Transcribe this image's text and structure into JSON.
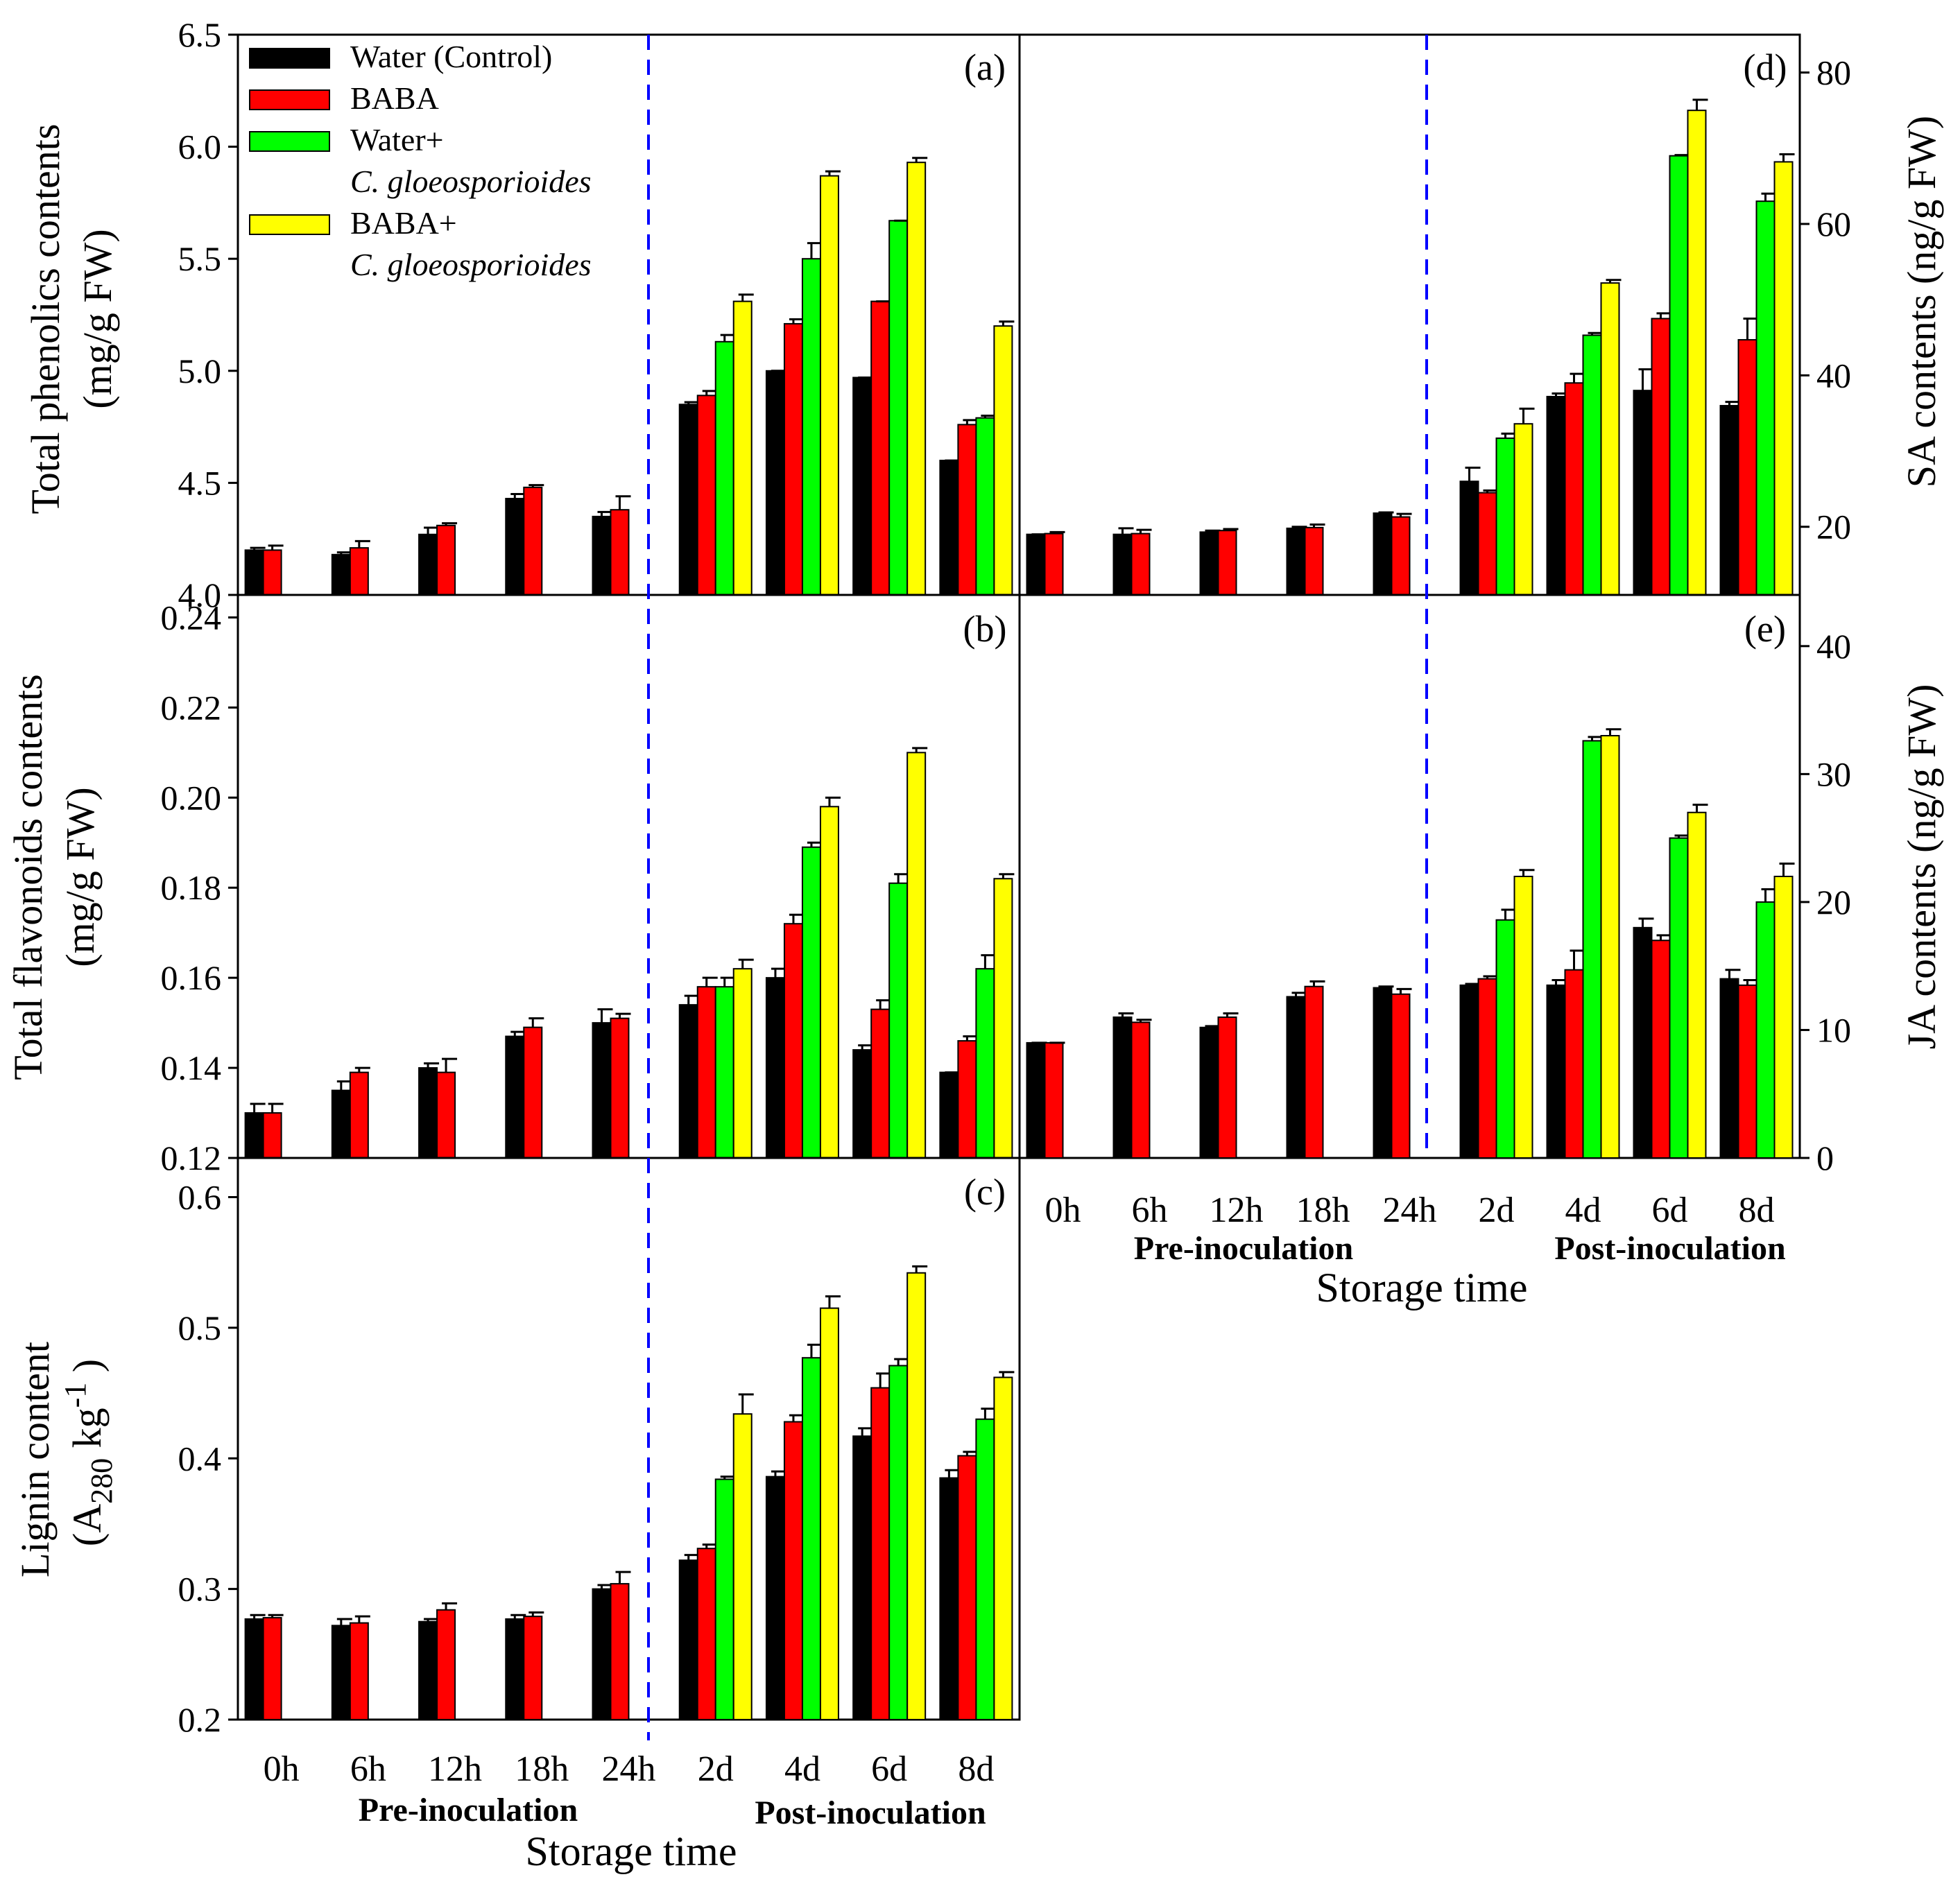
{
  "colors": {
    "water_control": "#000000",
    "baba": "#ff0000",
    "water_cg": "#00ff00",
    "baba_cg": "#ffff00",
    "divider": "#0000ff"
  },
  "legend": [
    {
      "line1": "Water (Control)",
      "line2": ""
    },
    {
      "line1": "BABA",
      "line2": ""
    },
    {
      "line1": "Water+",
      "line2": "C. gloeosporioides"
    },
    {
      "line1": "BABA+",
      "line2": "C. gloeosporioides"
    }
  ],
  "x_axis": {
    "categories": [
      "0h",
      "6h",
      "12h",
      "18h",
      "24h",
      "2d",
      "4d",
      "6d",
      "8d"
    ],
    "pre_label": "Pre-inoculation",
    "post_label": "Post-inoculation",
    "title": "Storage time"
  },
  "chart_data": [
    {
      "id": "a",
      "panel_label": "(a)",
      "type": "bar",
      "ylabel_line1": "Total phenolics contents",
      "ylabel_line2": "(mg/g FW)",
      "ylim": [
        4.0,
        6.5
      ],
      "yticks": [
        "4.0",
        "4.5",
        "5.0",
        "5.5",
        "6.0",
        "6.5"
      ],
      "ytick_values": [
        4.0,
        4.5,
        5.0,
        5.5,
        6.0,
        6.5
      ],
      "categories": [
        "0h",
        "6h",
        "12h",
        "18h",
        "24h",
        "2d",
        "4d",
        "6d",
        "8d"
      ],
      "series": [
        {
          "name": "Water (Control)",
          "values": [
            4.2,
            4.18,
            4.27,
            4.43,
            4.35,
            4.85,
            5.0,
            4.97,
            4.6
          ],
          "errors": [
            0.01,
            0.01,
            0.03,
            0.02,
            0.02,
            0.01,
            0.0,
            0.0,
            0.0
          ]
        },
        {
          "name": "BABA",
          "values": [
            4.2,
            4.21,
            4.31,
            4.48,
            4.38,
            4.89,
            5.21,
            5.31,
            4.76
          ],
          "errors": [
            0.02,
            0.03,
            0.01,
            0.01,
            0.06,
            0.02,
            0.02,
            0.0,
            0.02
          ]
        },
        {
          "name": "Water+C. gloeosporioides",
          "values": [
            null,
            null,
            null,
            null,
            null,
            5.13,
            5.5,
            5.67,
            4.79
          ],
          "errors": [
            0,
            0,
            0,
            0,
            0,
            0.03,
            0.07,
            0.0,
            0.01
          ]
        },
        {
          "name": "BABA+C. gloeosporioides",
          "values": [
            null,
            null,
            null,
            null,
            null,
            5.31,
            5.87,
            5.93,
            5.2
          ],
          "errors": [
            0,
            0,
            0,
            0,
            0,
            0.03,
            0.02,
            0.02,
            0.02
          ]
        }
      ]
    },
    {
      "id": "b",
      "panel_label": "(b)",
      "type": "bar",
      "ylabel_line1": "Total flavonoids contents",
      "ylabel_line2": "(mg/g FW)",
      "ylim": [
        0.12,
        0.245
      ],
      "yticks": [
        "0.12",
        "0.14",
        "0.16",
        "0.18",
        "0.20",
        "0.22",
        "0.24"
      ],
      "ytick_values": [
        0.12,
        0.14,
        0.16,
        0.18,
        0.2,
        0.22,
        0.24
      ],
      "categories": [
        "0h",
        "6h",
        "12h",
        "18h",
        "24h",
        "2d",
        "4d",
        "6d",
        "8d"
      ],
      "series": [
        {
          "name": "Water (Control)",
          "values": [
            0.13,
            0.135,
            0.14,
            0.147,
            0.15,
            0.154,
            0.16,
            0.144,
            0.139
          ],
          "errors": [
            0.002,
            0.002,
            0.001,
            0.001,
            0.003,
            0.002,
            0.002,
            0.001,
            0.0
          ]
        },
        {
          "name": "BABA",
          "values": [
            0.13,
            0.139,
            0.139,
            0.149,
            0.151,
            0.158,
            0.172,
            0.153,
            0.146
          ],
          "errors": [
            0.002,
            0.001,
            0.003,
            0.002,
            0.001,
            0.002,
            0.002,
            0.002,
            0.001
          ]
        },
        {
          "name": "Water+C. gloeosporioides",
          "values": [
            null,
            null,
            null,
            null,
            null,
            0.158,
            0.189,
            0.181,
            0.162
          ],
          "errors": [
            0,
            0,
            0,
            0,
            0,
            0.002,
            0.001,
            0.002,
            0.003
          ]
        },
        {
          "name": "BABA+C. gloeosporioides",
          "values": [
            null,
            null,
            null,
            null,
            null,
            0.162,
            0.198,
            0.21,
            0.182
          ],
          "errors": [
            0,
            0,
            0,
            0,
            0,
            0.002,
            0.002,
            0.001,
            0.001
          ]
        }
      ]
    },
    {
      "id": "c",
      "panel_label": "(c)",
      "type": "bar",
      "ylabel_line1": "Lignin content",
      "ylabel_line2_base": "(A",
      "ylabel_line2_sub": "280",
      "ylabel_line2_mid": " kg",
      "ylabel_line2_sup": "-1",
      "ylabel_line2_end": " )",
      "ylim": [
        0.2,
        0.63
      ],
      "yticks": [
        "0.2",
        "0.3",
        "0.4",
        "0.5",
        "0.6"
      ],
      "ytick_values": [
        0.2,
        0.3,
        0.4,
        0.5,
        0.6
      ],
      "categories": [
        "0h",
        "6h",
        "12h",
        "18h",
        "24h",
        "2d",
        "4d",
        "6d",
        "8d"
      ],
      "series": [
        {
          "name": "Water (Control)",
          "values": [
            0.277,
            0.272,
            0.275,
            0.277,
            0.3,
            0.322,
            0.386,
            0.417,
            0.385
          ],
          "errors": [
            0.003,
            0.005,
            0.002,
            0.003,
            0.003,
            0.004,
            0.004,
            0.006,
            0.006
          ]
        },
        {
          "name": "BABA",
          "values": [
            0.278,
            0.274,
            0.284,
            0.279,
            0.304,
            0.331,
            0.428,
            0.454,
            0.402
          ],
          "errors": [
            0.002,
            0.005,
            0.005,
            0.003,
            0.009,
            0.003,
            0.005,
            0.011,
            0.003
          ]
        },
        {
          "name": "Water+C. gloeosporioides",
          "values": [
            null,
            null,
            null,
            null,
            null,
            0.384,
            0.477,
            0.471,
            0.43
          ],
          "errors": [
            0,
            0,
            0,
            0,
            0,
            0.002,
            0.01,
            0.005,
            0.008
          ]
        },
        {
          "name": "BABA+C. gloeosporioides",
          "values": [
            null,
            null,
            null,
            null,
            null,
            0.434,
            0.515,
            0.542,
            0.462
          ],
          "errors": [
            0,
            0,
            0,
            0,
            0,
            0.015,
            0.009,
            0.005,
            0.004
          ]
        }
      ]
    },
    {
      "id": "d",
      "panel_label": "(d)",
      "type": "bar",
      "ylabel_line1": "SA contents (ng/g FW)",
      "ylim": [
        11,
        85
      ],
      "yticks": [
        "20",
        "40",
        "60",
        "80"
      ],
      "ytick_values": [
        20,
        40,
        60,
        80
      ],
      "categories": [
        "0h",
        "6h",
        "12h",
        "18h",
        "24h",
        "2d",
        "4d",
        "6d",
        "8d"
      ],
      "series": [
        {
          "name": "Water (Control)",
          "values": [
            19,
            19,
            19.3,
            19.8,
            21.8,
            26,
            37.2,
            38,
            36
          ],
          "errors": [
            0,
            0.8,
            0.2,
            0.2,
            0.1,
            1.8,
            0.4,
            2.8,
            0.5
          ]
        },
        {
          "name": "BABA",
          "values": [
            19.1,
            19.1,
            19.5,
            19.9,
            21.3,
            24.5,
            39,
            47.5,
            44.7
          ],
          "errors": [
            0.2,
            0.5,
            0.2,
            0.4,
            0.4,
            0.3,
            1.2,
            0.7,
            2.8
          ]
        },
        {
          "name": "Water+C. gloeosporioides",
          "values": [
            null,
            null,
            null,
            null,
            null,
            31.7,
            45.3,
            69,
            63
          ],
          "errors": [
            0,
            0,
            0,
            0,
            0,
            0.6,
            0.3,
            0.1,
            1
          ]
        },
        {
          "name": "BABA+C. gloeosporioides",
          "values": [
            null,
            null,
            null,
            null,
            null,
            33.6,
            52.2,
            75,
            68.2
          ],
          "errors": [
            0,
            0,
            0,
            0,
            0,
            2,
            0.4,
            1.4,
            1
          ]
        }
      ]
    },
    {
      "id": "e",
      "panel_label": "(e)",
      "type": "bar",
      "ylabel_line1": "JA contents (ng/g FW)",
      "ylim": [
        0,
        44
      ],
      "yticks": [
        "0",
        "10",
        "20",
        "30",
        "40"
      ],
      "ytick_values": [
        0,
        10,
        20,
        30,
        40
      ],
      "categories": [
        "0h",
        "6h",
        "12h",
        "18h",
        "24h",
        "2d",
        "4d",
        "6d",
        "8d"
      ],
      "series": [
        {
          "name": "Water (Control)",
          "values": [
            9,
            11,
            10.2,
            12.6,
            13.3,
            13.5,
            13.5,
            18,
            14
          ],
          "errors": [
            0,
            0.3,
            0.1,
            0.3,
            0.1,
            0.1,
            0.4,
            0.7,
            0.7
          ]
        },
        {
          "name": "BABA",
          "values": [
            9,
            10.6,
            11,
            13.4,
            12.8,
            14,
            14.7,
            17,
            13.5
          ],
          "errors": [
            0,
            0.2,
            0.3,
            0.4,
            0.4,
            0.2,
            1.5,
            0.4,
            0.4
          ]
        },
        {
          "name": "Water+C. gloeosporioides",
          "values": [
            null,
            null,
            null,
            null,
            null,
            18.6,
            32.6,
            25,
            20
          ],
          "errors": [
            0,
            0,
            0,
            0,
            0,
            0.8,
            0.3,
            0.2,
            1
          ]
        },
        {
          "name": "BABA+C. gloeosporioides",
          "values": [
            null,
            null,
            null,
            null,
            null,
            22,
            33,
            27,
            22
          ],
          "errors": [
            0,
            0,
            0,
            0,
            0,
            0.5,
            0.5,
            0.6,
            1
          ]
        }
      ]
    }
  ]
}
